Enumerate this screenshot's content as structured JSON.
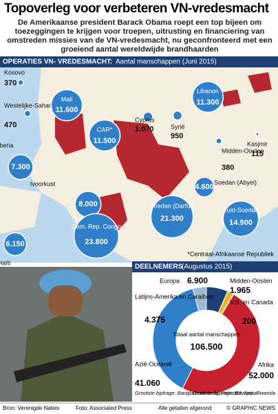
{
  "header": {
    "title": "Topoverleg voor verbeteren VN-vredesmacht",
    "subtitle": "De Amerikaanse president Barack Obama roept een top bijeen om toezeggingen te krijgen voor troepen, uitrusting en financiering van omstreden missies van de VN-vredesmacht, nu geconfronteerd met een groeiend aantal wereldwijde brandhaarden"
  },
  "map": {
    "heading": "OPERATIES VN- VREDESMACHT:",
    "subheading": "Aantal manschappen (Juni 2015)",
    "missions": [
      {
        "name": "Kosovo",
        "value": 370
      },
      {
        "name": "Westelijke-Sahara",
        "value": 470
      },
      {
        "name": "Mali",
        "value": 11600,
        "label": "11.600"
      },
      {
        "name": "Liberia",
        "value": 7300,
        "label": "7.300"
      },
      {
        "name": "CAR*",
        "value": 11500,
        "label": "11.500"
      },
      {
        "name": "Ivoorkust",
        "value": 8000,
        "label": "8.000"
      },
      {
        "name": "Haïti",
        "value": 6150,
        "label": "6.150"
      },
      {
        "name": "Dem. Rep. Congo",
        "value": 23800,
        "label": "23.800"
      },
      {
        "name": "Soedan (Darfur)",
        "value": 21300,
        "label": "21.300"
      },
      {
        "name": "Cyprus",
        "value": 1070,
        "label": "1.070"
      },
      {
        "name": "Syrië",
        "value": 950
      },
      {
        "name": "Libanon",
        "value": 11300,
        "label": "11.300"
      },
      {
        "name": "Midden-Oosten",
        "value": 380
      },
      {
        "name": "Kasjmir",
        "value": 115
      },
      {
        "name": "Soedan (Abyei)",
        "value": 4600,
        "label": "4.600"
      },
      {
        "name": "Zuid-Soedan",
        "value": 14900,
        "label": "14.900"
      }
    ],
    "footnote": "*Centraal-Afrikaanse Republiek"
  },
  "chart_data": {
    "type": "pie",
    "title": "DEELNEMERS",
    "subtitle": "(Augustus 2015)",
    "categories": [
      "Europa",
      "Midden-Oosten",
      "V.S. en Canada",
      "Afrika",
      "Azië-Oceanië",
      "Latijns-Amerika en Caraïben"
    ],
    "values": [
      6900,
      1965,
      200,
      52000,
      41060,
      4375
    ],
    "value_labels": [
      "6.900",
      "1.965",
      "200",
      "52.000",
      "41.060",
      "4.375"
    ],
    "colors": [
      "#1d3f73",
      "#f0b323",
      "#e8e8e8",
      "#c8202f",
      "#2f7fc9",
      "#9fb8d4"
    ],
    "center_label": "Totaal aantal manschappen",
    "total": {
      "value": 106500,
      "label": "106.500"
    },
    "notes": [
      "Grootste bijdrage: Bangladesh, India, Pakistan, Nepal",
      "Grootste bijdrage: Ethiopië, Rwanda"
    ]
  },
  "footer": {
    "source": "Bron: Verenigde Naties",
    "photo": "Foto: Associated Press",
    "rounding": "Alle getallen afgerond",
    "credit": "© GRAPHIC NEWS"
  }
}
